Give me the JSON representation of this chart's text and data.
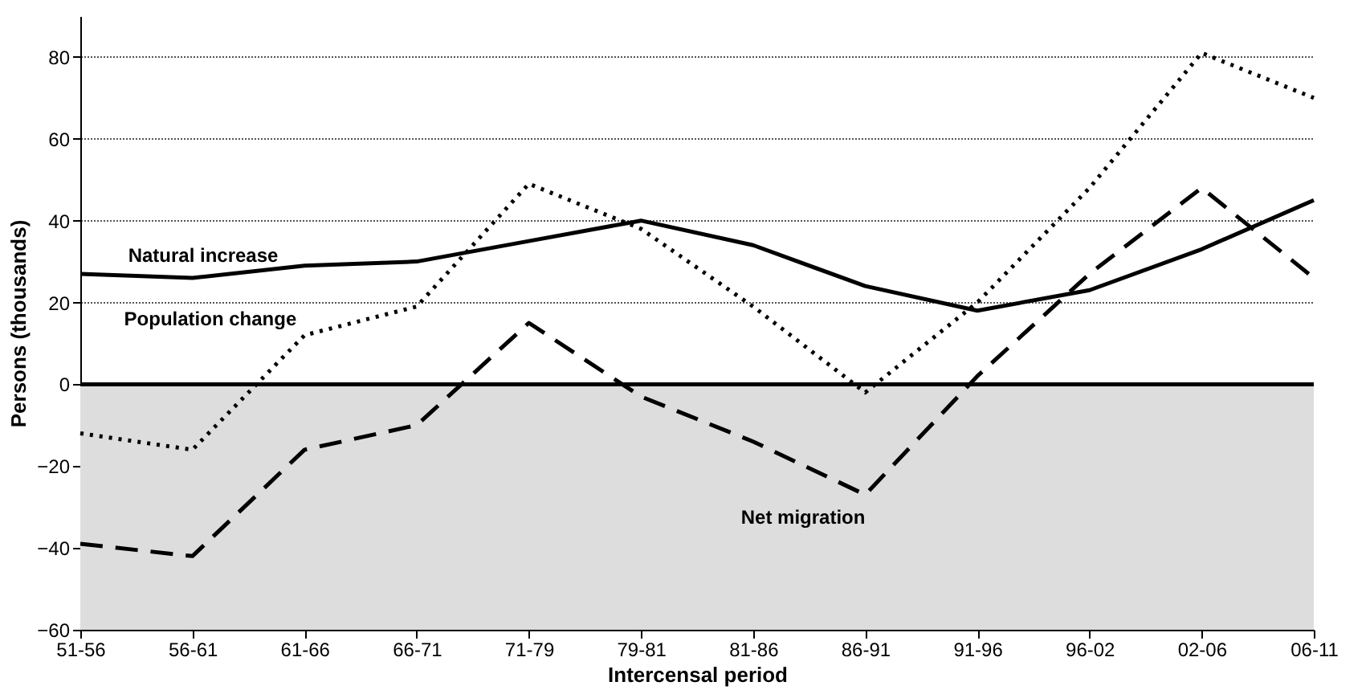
{
  "chart_data": {
    "type": "line",
    "xlabel": "Intercensal period",
    "ylabel": "Persons (thousands)",
    "categories": [
      "51-56",
      "56-61",
      "61-66",
      "66-71",
      "71-79",
      "79-81",
      "81-86",
      "86-91",
      "91-96",
      "96-02",
      "02-06",
      "06-11"
    ],
    "series": [
      {
        "name": "Natural increase",
        "color": "#000000",
        "line_style": "solid",
        "values": [
          27,
          26,
          29,
          30,
          35,
          40,
          34,
          24,
          18,
          23,
          33,
          45
        ]
      },
      {
        "name": "Population change",
        "color": "#000000",
        "line_style": "dotted",
        "values": [
          -12,
          -16,
          12,
          19,
          49,
          38,
          19,
          -2,
          20,
          48,
          81,
          70
        ]
      },
      {
        "name": "Net migration",
        "color": "#000000",
        "line_style": "dashed",
        "values": [
          -39,
          -42,
          -16,
          -10,
          15,
          -3,
          -14,
          -27,
          2,
          27,
          48,
          26
        ]
      }
    ],
    "ylim": [
      -60,
      90
    ],
    "yticks": [
      -60,
      -40,
      -20,
      0,
      20,
      40,
      60,
      80
    ],
    "grid": "y",
    "legend": false,
    "ref_lines": [
      {
        "axis": "y",
        "value": 0,
        "color": "#000000"
      }
    ],
    "bands": [
      {
        "axis": "y",
        "from": -60,
        "to": 0,
        "color": "#dddddd"
      }
    ]
  }
}
